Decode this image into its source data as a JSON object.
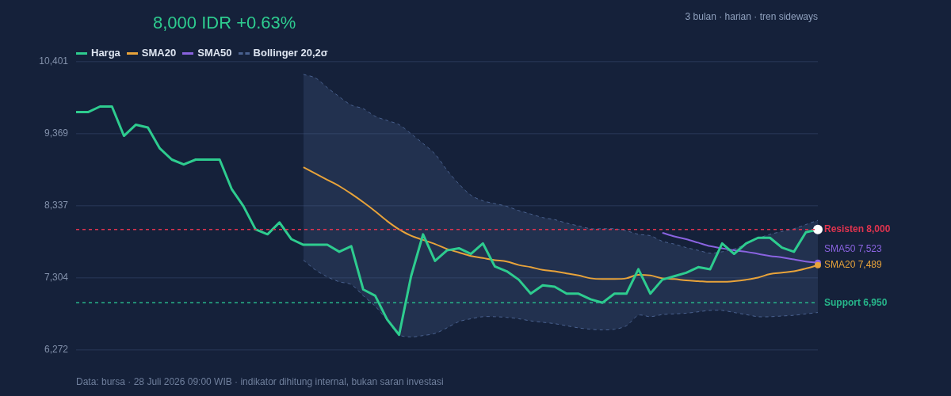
{
  "chart_data": {
    "type": "line",
    "title": "8,000 IDR +0.63%",
    "annotations": [
      "3 bulan · harian · tren sideways",
      "Data: bursa · 28 Juli 2026 09:00 WIB · indikator dihitung internal, bukan saran investasi"
    ],
    "categories": [
      null,
      null,
      null,
      null,
      null,
      null,
      null,
      null,
      null,
      null,
      null,
      null,
      null,
      null,
      null,
      null,
      null,
      null,
      null,
      null,
      null,
      null,
      null,
      null,
      null,
      null,
      null,
      null,
      null,
      null,
      null,
      null,
      null,
      null,
      null,
      null,
      null,
      null,
      null,
      null,
      null,
      null,
      null,
      null,
      null,
      null,
      null,
      null,
      null,
      null,
      null,
      null,
      null,
      null,
      null,
      null,
      null,
      null,
      null,
      null,
      null,
      null,
      null
    ],
    "ylim": [
      6272,
      10401
    ],
    "yticks": [
      {
        "value": 6272,
        "label": "6,272"
      },
      {
        "value": 7304,
        "label": "7,304"
      },
      {
        "value": 8337,
        "label": "8,337"
      },
      {
        "value": 9369,
        "label": "9,369"
      },
      {
        "value": 10401,
        "label": "10,401"
      }
    ],
    "grid": "y",
    "tick_labels": "y",
    "legend": "top left",
    "marker": "none",
    "series": [
      {
        "name": "Harga",
        "color": "#2ecc8f",
        "values": [
          9680,
          9680,
          9760,
          9760,
          9340,
          9500,
          9460,
          9160,
          9000,
          8930,
          9000,
          9000,
          9000,
          8580,
          8330,
          8000,
          7930,
          8100,
          7860,
          7780,
          7780,
          7780,
          7680,
          7760,
          7140,
          7050,
          6710,
          6490,
          7330,
          7930,
          7550,
          7700,
          7730,
          7650,
          7800,
          7470,
          7400,
          7280,
          7080,
          7200,
          7180,
          7080,
          7080,
          7000,
          6950,
          7080,
          7080,
          7430,
          7080,
          7280,
          7330,
          7380,
          7460,
          7430,
          7800,
          7650,
          7800,
          7880,
          7880,
          7740,
          7680,
          7960,
          8000
        ]
      },
      {
        "name": "SMA20",
        "color": "#e8a33a",
        "values": [
          null,
          null,
          null,
          null,
          null,
          null,
          null,
          null,
          null,
          null,
          null,
          null,
          null,
          null,
          null,
          null,
          null,
          null,
          null,
          8890,
          8800,
          8710,
          8620,
          8510,
          8390,
          8260,
          8120,
          8000,
          7910,
          7850,
          7790,
          7720,
          7670,
          7620,
          7590,
          7560,
          7540,
          7490,
          7460,
          7420,
          7400,
          7370,
          7340,
          7300,
          7290,
          7290,
          7300,
          7350,
          7340,
          7300,
          7290,
          7270,
          7260,
          7250,
          7250,
          7260,
          7280,
          7310,
          7360,
          7380,
          7400,
          7440,
          7489
        ],
        "value_labels": [
          null,
          null,
          null,
          null,
          null,
          null,
          null,
          null,
          null,
          null,
          null,
          null,
          null,
          null,
          null,
          null,
          null,
          null,
          null,
          null,
          null,
          null,
          null,
          null,
          null,
          null,
          null,
          null,
          null,
          null,
          null,
          null,
          null,
          null,
          null,
          null,
          null,
          null,
          null,
          null,
          null,
          null,
          null,
          null,
          null,
          null,
          null,
          null,
          null,
          null,
          null,
          null,
          null,
          null,
          null,
          null,
          null,
          null,
          null,
          null,
          null,
          null,
          "SMA20 7,489"
        ]
      },
      {
        "name": "SMA50",
        "color": "#8a63e0",
        "values": [
          null,
          null,
          null,
          null,
          null,
          null,
          null,
          null,
          null,
          null,
          null,
          null,
          null,
          null,
          null,
          null,
          null,
          null,
          null,
          null,
          null,
          null,
          null,
          null,
          null,
          null,
          null,
          null,
          null,
          null,
          null,
          null,
          null,
          null,
          null,
          null,
          null,
          null,
          null,
          null,
          null,
          null,
          null,
          null,
          null,
          null,
          null,
          null,
          null,
          7950,
          7900,
          7860,
          7810,
          7760,
          7730,
          7700,
          7680,
          7650,
          7620,
          7600,
          7570,
          7540,
          7523
        ],
        "value_labels": [
          null,
          null,
          null,
          null,
          null,
          null,
          null,
          null,
          null,
          null,
          null,
          null,
          null,
          null,
          null,
          null,
          null,
          null,
          null,
          null,
          null,
          null,
          null,
          null,
          null,
          null,
          null,
          null,
          null,
          null,
          null,
          null,
          null,
          null,
          null,
          null,
          null,
          null,
          null,
          null,
          null,
          null,
          null,
          null,
          null,
          null,
          null,
          null,
          null,
          null,
          null,
          null,
          null,
          null,
          null,
          null,
          null,
          null,
          null,
          null,
          null,
          null,
          "SMA50 7,523"
        ]
      },
      {
        "name": "Bollinger 20,2σ",
        "color": "#4a6290",
        "line_style": "dashed",
        "values": [
          null,
          null,
          null,
          null,
          null,
          null,
          null,
          null,
          null,
          null,
          null,
          null,
          null,
          null,
          null,
          null,
          null,
          null,
          null,
          10220,
          10170,
          10030,
          9900,
          9780,
          9730,
          9620,
          9560,
          9500,
          9370,
          9230,
          9080,
          8850,
          8650,
          8490,
          8410,
          8370,
          8330,
          8270,
          8220,
          8170,
          8140,
          8090,
          8050,
          8010,
          8010,
          8010,
          7980,
          7930,
          7910,
          7830,
          7790,
          7740,
          7700,
          7660,
          7680,
          7720,
          7790,
          7870,
          7930,
          7970,
          8010,
          8070,
          8130
        ],
        "upper": [
          null,
          null,
          null,
          null,
          null,
          null,
          null,
          null,
          null,
          null,
          null,
          null,
          null,
          null,
          null,
          null,
          null,
          null,
          null,
          10220,
          10170,
          10030,
          9900,
          9780,
          9730,
          9620,
          9560,
          9500,
          9370,
          9230,
          9080,
          8850,
          8650,
          8490,
          8410,
          8370,
          8330,
          8270,
          8220,
          8170,
          8140,
          8090,
          8050,
          8010,
          8010,
          8010,
          7980,
          7930,
          7910,
          7830,
          7790,
          7740,
          7700,
          7660,
          7680,
          7720,
          7790,
          7870,
          7930,
          7970,
          8010,
          8070,
          8130
        ],
        "lower": [
          null,
          null,
          null,
          null,
          null,
          null,
          null,
          null,
          null,
          null,
          null,
          null,
          null,
          null,
          null,
          null,
          null,
          null,
          null,
          7560,
          7420,
          7320,
          7250,
          7210,
          7050,
          6900,
          6700,
          6490,
          6460,
          6480,
          6510,
          6590,
          6680,
          6720,
          6750,
          6750,
          6740,
          6720,
          6690,
          6670,
          6650,
          6620,
          6590,
          6570,
          6560,
          6570,
          6620,
          6770,
          6750,
          6780,
          6790,
          6800,
          6820,
          6840,
          6840,
          6810,
          6780,
          6750,
          6750,
          6760,
          6770,
          6790,
          6810
        ]
      },
      {
        "color": "#4a6290",
        "line_style": "dashed",
        "values": [
          null,
          null,
          null,
          null,
          null,
          null,
          null,
          null,
          null,
          null,
          null,
          null,
          null,
          null,
          null,
          null,
          null,
          null,
          null,
          7560,
          7420,
          7320,
          7250,
          7210,
          7050,
          6900,
          6700,
          6490,
          6460,
          6480,
          6510,
          6590,
          6680,
          6720,
          6750,
          6750,
          6740,
          6720,
          6690,
          6670,
          6650,
          6620,
          6590,
          6570,
          6560,
          6570,
          6620,
          6770,
          6750,
          6780,
          6790,
          6800,
          6820,
          6840,
          6840,
          6810,
          6780,
          6750,
          6750,
          6760,
          6770,
          6790,
          6810
        ]
      }
    ],
    "ref_lines": [
      {
        "axis": "y",
        "value": 8000,
        "label": "Resisten 8,000",
        "color": "#e0344f",
        "line_style": "dashed"
      },
      {
        "axis": "y",
        "value": 6950,
        "label": "Support 6,950",
        "color": "#27b58a",
        "line_style": "dashed"
      }
    ]
  }
}
